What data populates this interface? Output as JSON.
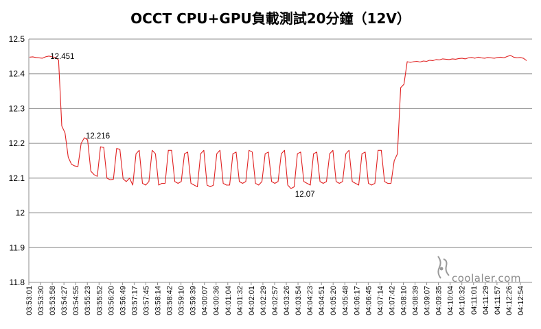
{
  "chart_data": {
    "type": "line",
    "title": "OCCT CPU+GPU負載測試20分鐘（12V）",
    "xlabel": "",
    "ylabel": "",
    "ylim": [
      11.8,
      12.5
    ],
    "yticks": [
      11.8,
      11.9,
      12,
      12.1,
      12.2,
      12.3,
      12.4,
      12.5
    ],
    "grid": "horizontal",
    "legend": "none",
    "line_color": "#e02020",
    "x_tick_labels": [
      "03:53:01",
      "03:53:30",
      "03:53:58",
      "03:54:27",
      "03:54:55",
      "03:55:23",
      "03:55:52",
      "03:56:20",
      "03:56:49",
      "03:57:17",
      "03:57:45",
      "03:58:14",
      "03:58:42",
      "03:59:10",
      "03:59:39",
      "04:00:07",
      "04:00:36",
      "04:01:04",
      "04:01:32",
      "04:02:01",
      "04:02:29",
      "04:02:57",
      "04:03:26",
      "04:03:54",
      "04:04:23",
      "04:04:51",
      "04:05:20",
      "04:05:48",
      "04:06:17",
      "04:06:45",
      "04:07:14",
      "04:07:42",
      "04:08:10",
      "04:08:39",
      "04:09:07",
      "04:09:35",
      "04:10:04",
      "04:10:32",
      "04:11:01",
      "04:11:29",
      "04:11:57",
      "04:12:26",
      "04:12:54"
    ],
    "x_start": "03:53:01",
    "x_end": "04:13:23",
    "series": [
      {
        "values": [
          12.448,
          12.449,
          12.447,
          12.446,
          12.445,
          12.449,
          12.451,
          12.449,
          12.447,
          12.44,
          12.25,
          12.23,
          12.16,
          12.14,
          12.135,
          12.133,
          12.2,
          12.216,
          12.21,
          12.12,
          12.11,
          12.105,
          12.19,
          12.188,
          12.1,
          12.095,
          12.097,
          12.185,
          12.183,
          12.098,
          12.09,
          12.1,
          12.08,
          12.17,
          12.18,
          12.085,
          12.08,
          12.09,
          12.18,
          12.17,
          12.08,
          12.085,
          12.085,
          12.18,
          12.18,
          12.09,
          12.085,
          12.09,
          12.17,
          12.175,
          12.085,
          12.08,
          12.075,
          12.17,
          12.18,
          12.08,
          12.075,
          12.08,
          12.17,
          12.18,
          12.085,
          12.08,
          12.08,
          12.17,
          12.175,
          12.09,
          12.085,
          12.09,
          12.18,
          12.175,
          12.085,
          12.08,
          12.09,
          12.17,
          12.175,
          12.09,
          12.085,
          12.09,
          12.17,
          12.18,
          12.08,
          12.07,
          12.075,
          12.17,
          12.175,
          12.09,
          12.085,
          12.08,
          12.17,
          12.175,
          12.09,
          12.085,
          12.09,
          12.17,
          12.18,
          12.09,
          12.085,
          12.09,
          12.17,
          12.18,
          12.09,
          12.085,
          12.08,
          12.17,
          12.175,
          12.085,
          12.08,
          12.085,
          12.18,
          12.18,
          12.09,
          12.085,
          12.085,
          12.15,
          12.17,
          12.36,
          12.37,
          12.435,
          12.433,
          12.435,
          12.436,
          12.434,
          12.437,
          12.436,
          12.439,
          12.438,
          12.441,
          12.44,
          12.443,
          12.442,
          12.441,
          12.443,
          12.442,
          12.444,
          12.445,
          12.443,
          12.446,
          12.447,
          12.445,
          12.448,
          12.446,
          12.445,
          12.447,
          12.446,
          12.445,
          12.447,
          12.448,
          12.446,
          12.45,
          12.453,
          12.448,
          12.446,
          12.447,
          12.445,
          12.438
        ]
      }
    ],
    "data_labels": [
      {
        "text": "12.451",
        "index": 6
      },
      {
        "text": "12.216",
        "index": 17
      },
      {
        "text": "12.07",
        "index": 81
      }
    ]
  },
  "watermark": {
    "text": "coolaler.com"
  }
}
